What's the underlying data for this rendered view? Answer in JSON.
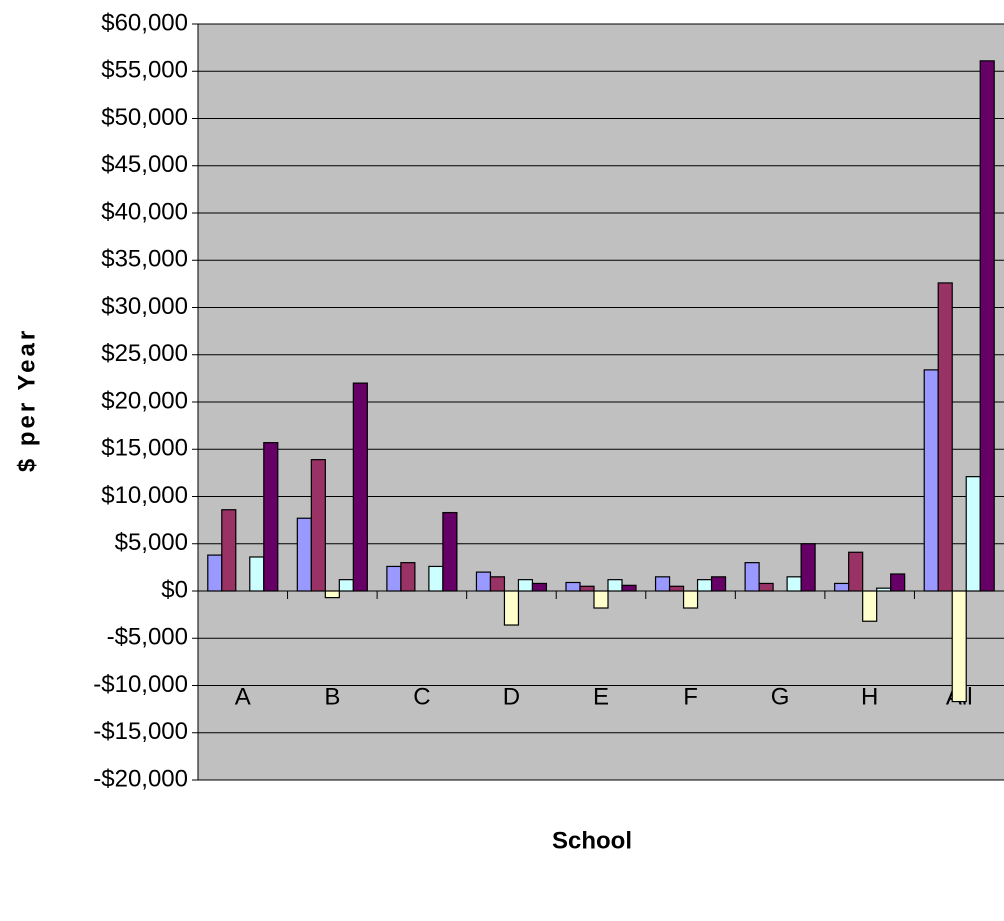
{
  "chart_data": {
    "type": "bar",
    "x_label": "School",
    "y_label": "$ per Year",
    "categories": [
      "A",
      "B",
      "C",
      "D",
      "E",
      "F",
      "G",
      "H",
      "All"
    ],
    "series": [
      {
        "color": "#9999ff",
        "values": [
          3800,
          7700,
          2600,
          2000,
          900,
          1500,
          3000,
          800,
          23400
        ]
      },
      {
        "color": "#993366",
        "values": [
          8600,
          13900,
          3000,
          1500,
          500,
          500,
          800,
          4100,
          32600
        ]
      },
      {
        "color": "#ffffcc",
        "values": [
          0,
          -700,
          0,
          -3600,
          -1800,
          -1800,
          0,
          -3200,
          -11700
        ]
      },
      {
        "color": "#ccffff",
        "values": [
          3600,
          1200,
          2600,
          1200,
          1200,
          1200,
          1500,
          300,
          12100
        ]
      },
      {
        "color": "#660066",
        "values": [
          15700,
          22000,
          8300,
          800,
          600,
          1500,
          5000,
          1800,
          56100
        ]
      }
    ],
    "ylim": [
      -20000,
      60000
    ],
    "yticks": [
      {
        "value": -20000,
        "label": "-$20,000"
      },
      {
        "value": -15000,
        "label": "-$15,000"
      },
      {
        "value": -10000,
        "label": "-$10,000"
      },
      {
        "value": -5000,
        "label": "-$5,000"
      },
      {
        "value": 0,
        "label": "$0"
      },
      {
        "value": 5000,
        "label": "$5,000"
      },
      {
        "value": 10000,
        "label": "$10,000"
      },
      {
        "value": 15000,
        "label": "$15,000"
      },
      {
        "value": 20000,
        "label": "$20,000"
      },
      {
        "value": 25000,
        "label": "$25,000"
      },
      {
        "value": 30000,
        "label": "$30,000"
      },
      {
        "value": 35000,
        "label": "$35,000"
      },
      {
        "value": 40000,
        "label": "$40,000"
      },
      {
        "value": 45000,
        "label": "$45,000"
      },
      {
        "value": 50000,
        "label": "$50,000"
      },
      {
        "value": 55000,
        "label": "$55,000"
      },
      {
        "value": 60000,
        "label": "$60,000"
      }
    ],
    "grid": true,
    "plot_background": "#c0c0c0"
  }
}
